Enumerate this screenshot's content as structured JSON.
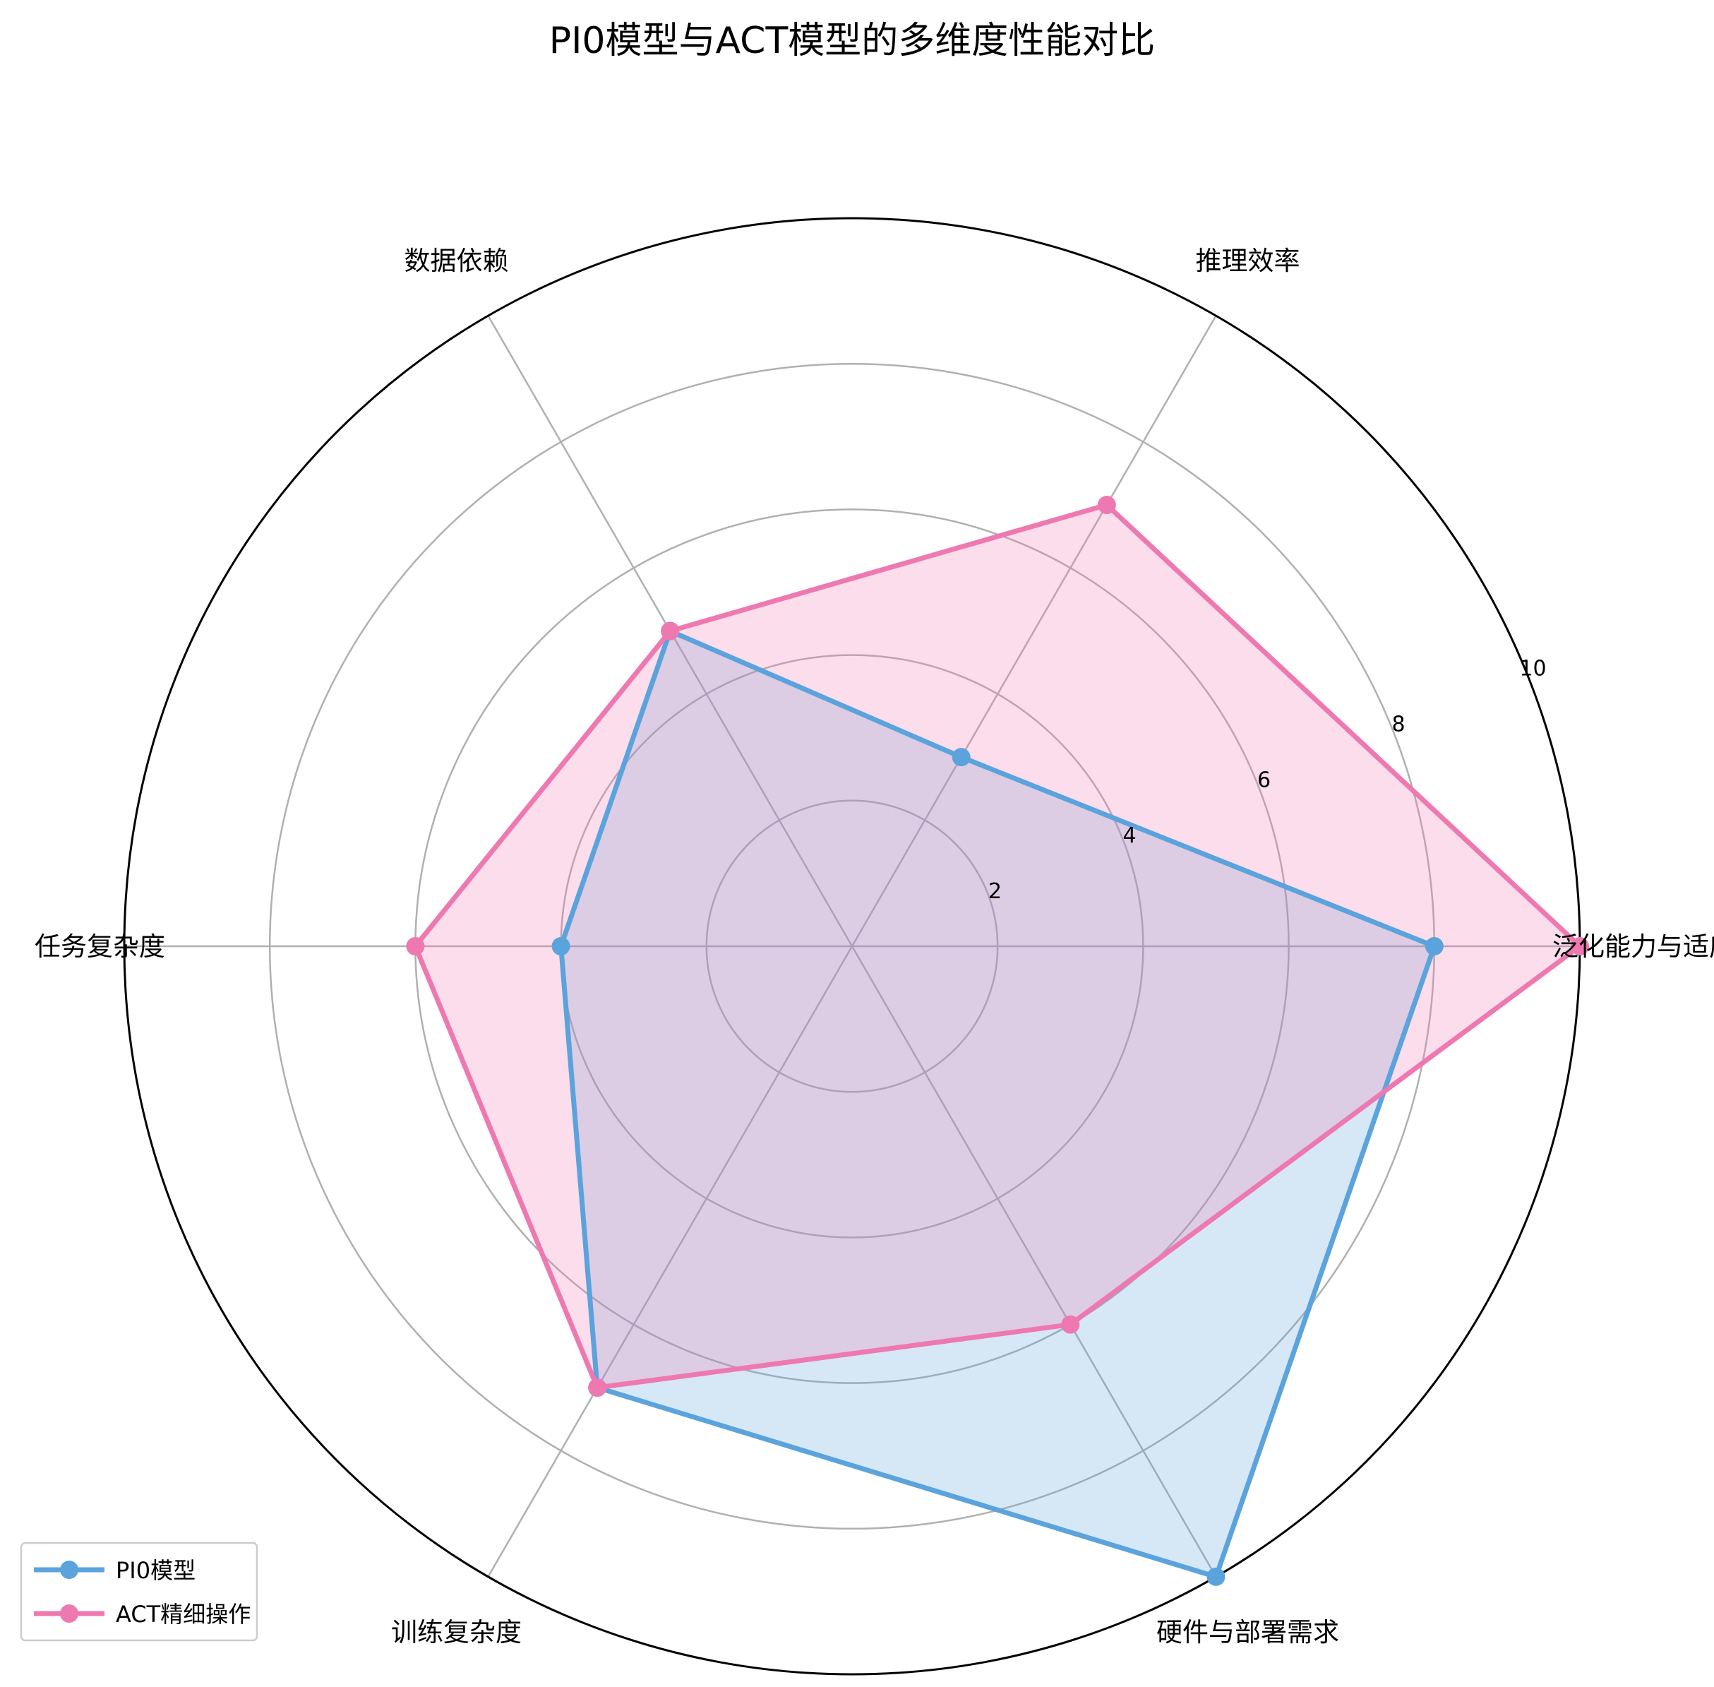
{
  "chart_data": {
    "type": "radar",
    "title": "PI0模型与ACT模型的多维度性能对比",
    "axes": [
      "泛化能力与适应性",
      "推理效率",
      "数据依赖",
      "任务复杂度",
      "训练复杂度",
      "硬件与部署需求"
    ],
    "rlim": [
      0,
      10
    ],
    "rticks": [
      2,
      4,
      6,
      8,
      10
    ],
    "grid": true,
    "legend_position": "lower-left",
    "series": [
      {
        "name": "PI0模型",
        "values": [
          8,
          3,
          5,
          4,
          7,
          10
        ],
        "color": "#5ba3dc"
      },
      {
        "name": "ACT精细操作",
        "values": [
          10,
          7,
          5,
          6,
          7,
          6
        ],
        "color": "#ee79b0"
      }
    ]
  }
}
